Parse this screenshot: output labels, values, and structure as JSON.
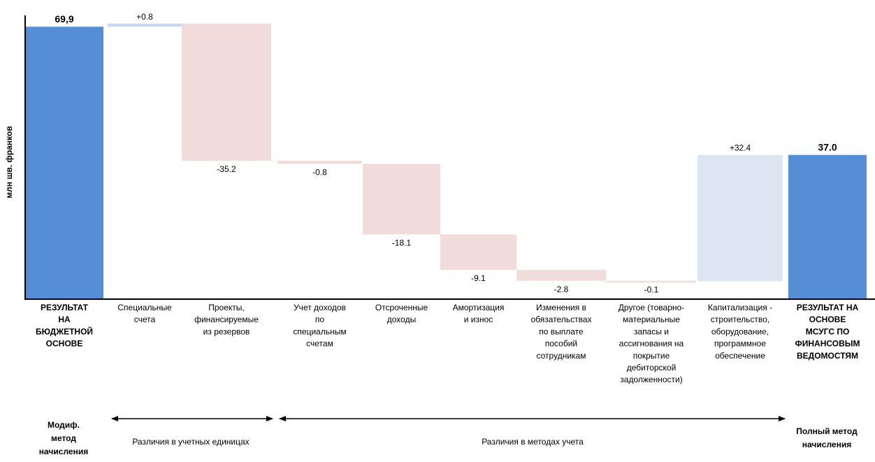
{
  "chart_data": {
    "type": "bar",
    "subtype": "waterfall",
    "ylabel": "млн шв. франков",
    "ylim": [
      0,
      70.3
    ],
    "grid": false,
    "colors": {
      "total": "#558ED5",
      "increase": "#DCE6F2",
      "increase_small": "#C6D9F1",
      "decrease": "#F2DCDB",
      "axis": "#000000"
    },
    "categories": [
      {
        "label": [
          "РЕЗУЛЬТАТ",
          "НА",
          "БЮДЖЕТНОЙ",
          "ОСНОВЕ"
        ],
        "bold": true,
        "kind": "total",
        "value": 69.9,
        "display": "69,9"
      },
      {
        "label": [
          "Специальные",
          "счета"
        ],
        "kind": "delta",
        "value": 0.8,
        "display": "+0.8"
      },
      {
        "label": [
          "Проекты,",
          "финансируемые",
          "из резервов"
        ],
        "kind": "delta",
        "value": -35.2,
        "display": "-35.2"
      },
      {
        "label": [
          "Учет доходов",
          "по",
          "специальным",
          "счетам"
        ],
        "kind": "delta",
        "value": -0.8,
        "display": "-0.8"
      },
      {
        "label": [
          "Отсроченные",
          "доходы"
        ],
        "kind": "delta",
        "value": -18.1,
        "display": "-18.1"
      },
      {
        "label": [
          "Амортизация",
          "и износ"
        ],
        "kind": "delta",
        "value": -9.1,
        "display": "-9.1"
      },
      {
        "label": [
          "Изменения в",
          "обязательствах",
          "по выплате",
          "пособий",
          "сотрудникам"
        ],
        "kind": "delta",
        "value": -2.8,
        "display": "-2.8"
      },
      {
        "label": [
          "Другое (товарно-",
          "материальные",
          "запасы и",
          "ассигнования на",
          "покрытие",
          "дебиторской",
          "задолженности)"
        ],
        "kind": "delta",
        "value": -0.1,
        "display": "-0.1"
      },
      {
        "label": [
          "Капитализация -",
          "строительство,",
          "оборудование,",
          "программное",
          "обеспечение"
        ],
        "kind": "delta",
        "value": 32.4,
        "display": "+32.4"
      },
      {
        "label": [
          "РЕЗУЛЬТАТ НА",
          "ОСНОВЕ",
          "МСУГС ПО",
          "ФИНАНСОВЫМ",
          "ВЕДОМОСТЯМ"
        ],
        "bold": true,
        "kind": "total",
        "value": 37.0,
        "display": "37.0"
      }
    ],
    "annotations": {
      "left_method": [
        "Модиф.",
        "метод",
        "начисления"
      ],
      "right_method": [
        "Полный метод",
        "начисления"
      ],
      "range_units": "Различия в учетных единицах",
      "range_methods": "Различия в методах учета"
    }
  }
}
